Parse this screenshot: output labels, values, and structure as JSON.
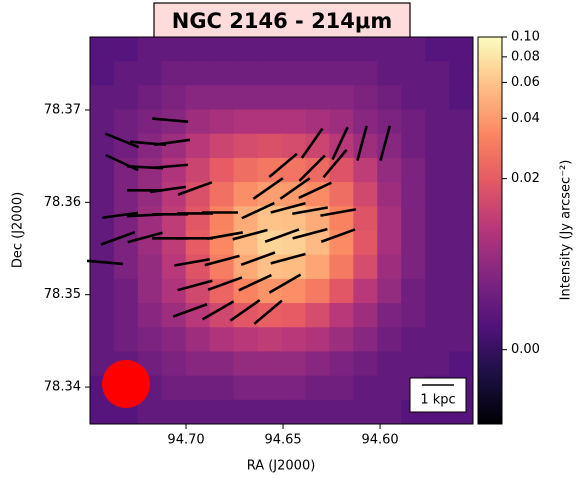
{
  "chart_data": {
    "type": "image",
    "title": "NGC 2146 - 214μm",
    "xlabel": "RA (J2000)",
    "ylabel": "Dec (J2000)",
    "colorbar_label": "Intensity (Jy arcsec⁻²)",
    "scalebar_label": "1 kpc",
    "xlim": [
      94.7495,
      94.5521
    ],
    "ylim": [
      78.336,
      78.3779
    ],
    "xticks": [
      {
        "value": 94.7,
        "label": "94.70"
      },
      94.65,
      {
        "value": 94.6,
        "label": "94.60"
      }
    ],
    "yticks": [
      78.37,
      78.36,
      78.35,
      78.34
    ],
    "clim": [
      -0.0056,
      0.1
    ],
    "color_scale": {
      "type": "asinh",
      "a": 0.006
    },
    "colormap": "magma",
    "cticks": [
      {
        "value": 0.1,
        "label": "0.10"
      },
      0.08,
      0.06,
      0.04,
      0.02,
      {
        "value": 0,
        "label": "0.00"
      }
    ],
    "image": {
      "values": [
        [
          0.002,
          0.002,
          0.003,
          0.003,
          0.003,
          0.003,
          0.003,
          0.003,
          0.003,
          0.003,
          0.003,
          0.003,
          0.003,
          0.003,
          0.002,
          0.002
        ],
        [
          0.002,
          0.003,
          0.003,
          0.004,
          0.004,
          0.004,
          0.004,
          0.004,
          0.004,
          0.004,
          0.004,
          0.004,
          0.003,
          0.003,
          0.003,
          0.002
        ],
        [
          0.003,
          0.003,
          0.004,
          0.005,
          0.006,
          0.006,
          0.006,
          0.006,
          0.006,
          0.006,
          0.006,
          0.005,
          0.004,
          0.003,
          0.003,
          0.002
        ],
        [
          0.003,
          0.004,
          0.005,
          0.006,
          0.008,
          0.009,
          0.01,
          0.01,
          0.01,
          0.009,
          0.008,
          0.006,
          0.005,
          0.004,
          0.003,
          0.003
        ],
        [
          0.003,
          0.004,
          0.006,
          0.008,
          0.011,
          0.014,
          0.016,
          0.017,
          0.016,
          0.014,
          0.011,
          0.008,
          0.006,
          0.004,
          0.003,
          0.003
        ],
        [
          0.003,
          0.005,
          0.007,
          0.01,
          0.014,
          0.02,
          0.025,
          0.028,
          0.027,
          0.024,
          0.018,
          0.012,
          0.007,
          0.005,
          0.003,
          0.003
        ],
        [
          0.003,
          0.005,
          0.007,
          0.011,
          0.017,
          0.026,
          0.036,
          0.042,
          0.041,
          0.035,
          0.025,
          0.015,
          0.008,
          0.005,
          0.003,
          0.003
        ],
        [
          0.003,
          0.005,
          0.008,
          0.012,
          0.019,
          0.032,
          0.048,
          0.06,
          0.058,
          0.048,
          0.032,
          0.018,
          0.009,
          0.005,
          0.003,
          0.003
        ],
        [
          0.003,
          0.005,
          0.008,
          0.012,
          0.02,
          0.034,
          0.055,
          0.07,
          0.068,
          0.055,
          0.035,
          0.019,
          0.009,
          0.005,
          0.003,
          0.003
        ],
        [
          0.003,
          0.005,
          0.007,
          0.011,
          0.018,
          0.03,
          0.047,
          0.058,
          0.056,
          0.045,
          0.029,
          0.016,
          0.008,
          0.005,
          0.003,
          0.003
        ],
        [
          0.003,
          0.004,
          0.007,
          0.01,
          0.015,
          0.023,
          0.032,
          0.038,
          0.036,
          0.029,
          0.019,
          0.011,
          0.007,
          0.004,
          0.003,
          0.003
        ],
        [
          0.003,
          0.004,
          0.006,
          0.008,
          0.011,
          0.015,
          0.019,
          0.021,
          0.02,
          0.016,
          0.011,
          0.008,
          0.005,
          0.004,
          0.003,
          0.003
        ],
        [
          0.003,
          0.004,
          0.005,
          0.006,
          0.008,
          0.01,
          0.011,
          0.012,
          0.011,
          0.01,
          0.008,
          0.006,
          0.004,
          0.003,
          0.003,
          0.003
        ],
        [
          0.003,
          0.003,
          0.004,
          0.005,
          0.006,
          0.006,
          0.007,
          0.007,
          0.007,
          0.006,
          0.005,
          0.004,
          0.003,
          0.003,
          0.003,
          0.002
        ],
        [
          0.002,
          0.003,
          0.003,
          0.004,
          0.004,
          0.004,
          0.005,
          0.005,
          0.005,
          0.004,
          0.004,
          0.003,
          0.003,
          0.003,
          0.002,
          0.002
        ],
        [
          0.002,
          0.002,
          0.003,
          0.003,
          0.003,
          0.003,
          0.003,
          0.003,
          0.003,
          0.003,
          0.003,
          0.003,
          0.003,
          0.002,
          0.002,
          0.002
        ]
      ]
    },
    "vectors": {
      "color": "#000000",
      "ra": [
        94.7082,
        94.733,
        94.7196,
        94.7072,
        94.733,
        94.7211,
        94.7082,
        94.7211,
        94.7093,
        94.6954,
        94.734,
        94.7211,
        94.7082,
        94.6954,
        94.6825,
        94.6629,
        94.6474,
        94.6361,
        94.6216,
        94.635,
        94.6206,
        94.6093,
        94.5974,
        94.65,
        94.635,
        94.6232,
        94.6577,
        94.6438,
        94.6335,
        94.7351,
        94.7211,
        94.7082,
        94.6954,
        94.6799,
        94.667,
        94.6505,
        94.6361,
        94.6216,
        94.7418,
        94.6969,
        94.6814,
        94.6629,
        94.6474,
        94.6954,
        94.6799,
        94.6644,
        94.649,
        94.6979,
        94.6835,
        94.6696,
        94.6577
      ],
      "dec": [
        78.3689,
        78.3667,
        78.3664,
        78.3665,
        78.3643,
        78.3638,
        78.3639,
        78.3613,
        78.3614,
        78.3615,
        78.3586,
        78.3586,
        78.3587,
        78.3588,
        78.3589,
        78.3591,
        78.3594,
        78.3591,
        78.3589,
        78.3664,
        78.3664,
        78.3664,
        78.3664,
        78.364,
        78.3637,
        78.3642,
        78.3615,
        78.3615,
        78.3613,
        78.3561,
        78.3562,
        78.3561,
        78.3561,
        78.3564,
        78.3565,
        78.3564,
        78.3566,
        78.3564,
        78.3535,
        78.3535,
        78.3537,
        78.3539,
        78.3539,
        78.351,
        78.3512,
        78.3513,
        78.3512,
        78.3483,
        78.3483,
        78.3483,
        78.3481
      ],
      "angle": [
        -5,
        -22,
        -5,
        8,
        -25,
        -3,
        5,
        0,
        8,
        20,
        8,
        3,
        0,
        0,
        0,
        25,
        15,
        10,
        10,
        55,
        65,
        75,
        75,
        40,
        45,
        50,
        35,
        35,
        25,
        20,
        15,
        0,
        0,
        10,
        15,
        20,
        15,
        20,
        -5,
        10,
        15,
        20,
        15,
        15,
        20,
        25,
        30,
        20,
        30,
        35,
        40
      ]
    },
    "beam_color": "#ff0000"
  }
}
